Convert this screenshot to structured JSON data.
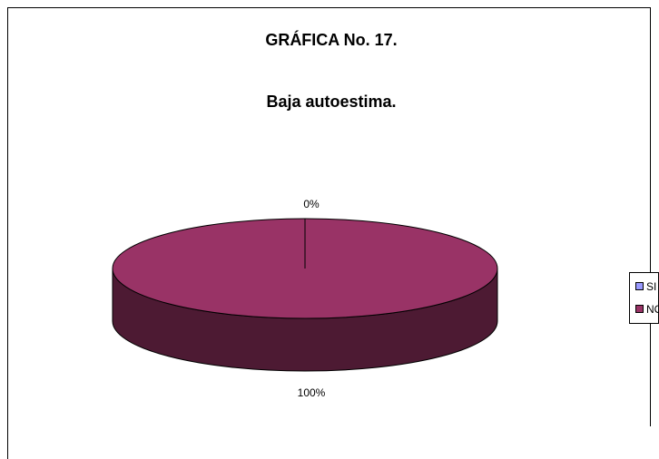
{
  "chart_data": {
    "type": "pie",
    "title": "GRÁFICA No. 17.",
    "subtitle": "Baja autoestima.",
    "categories": [
      "SI",
      "NO"
    ],
    "values": [
      0,
      100
    ],
    "value_labels": [
      "0%",
      "100%"
    ],
    "colors": [
      "#9999ff",
      "#993366"
    ],
    "legend": "right"
  }
}
